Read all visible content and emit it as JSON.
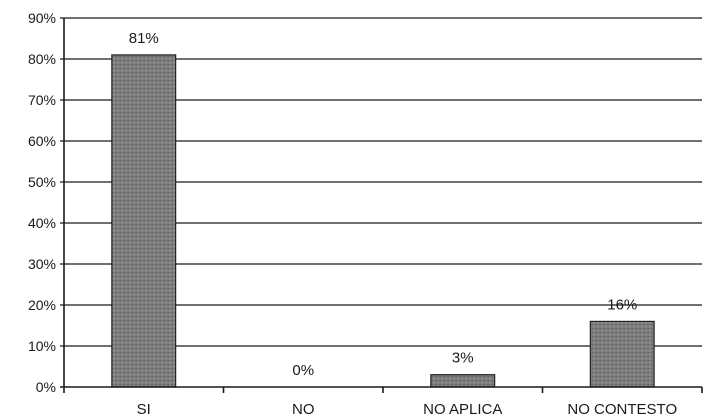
{
  "chart_data": {
    "type": "bar",
    "categories": [
      "SI",
      "NO",
      "NO APLICA",
      "NO CONTESTO"
    ],
    "values": [
      81,
      0,
      3,
      16
    ],
    "value_labels": [
      "81%",
      "0%",
      "3%",
      "16%"
    ],
    "ylim": [
      0,
      90
    ],
    "y_ticks": [
      0,
      10,
      20,
      30,
      40,
      50,
      60,
      70,
      80,
      90
    ],
    "y_tick_labels": [
      "0%",
      "10%",
      "20%",
      "30%",
      "40%",
      "50%",
      "60%",
      "70%",
      "80%",
      "90%"
    ],
    "grid": true,
    "legend": "none",
    "bar_color": "#7a7a7a"
  }
}
